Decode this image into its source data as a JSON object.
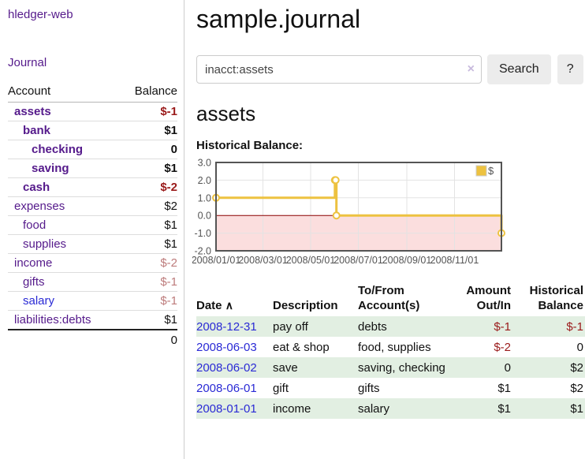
{
  "app": {
    "title": "hledger-web",
    "nav": {
      "journal": "Journal"
    }
  },
  "colors": {
    "purple": "#551a8b",
    "blue": "#2a2ad5",
    "negred": "#9a1a1a",
    "rose": "#bd7b7b",
    "rowgreen": "#e2efe2"
  },
  "sidebar": {
    "header": {
      "account": "Account",
      "balance": "Balance"
    },
    "accounts": [
      {
        "name": "assets",
        "balance": "$-1",
        "depth": 0,
        "bold": true,
        "muted": false,
        "link_color": "purple"
      },
      {
        "name": "bank",
        "balance": "$1",
        "depth": 1,
        "bold": true,
        "muted": false,
        "link_color": "purple"
      },
      {
        "name": "checking",
        "balance": "0",
        "depth": 2,
        "bold": true,
        "muted": false,
        "link_color": "purple"
      },
      {
        "name": "saving",
        "balance": "$1",
        "depth": 2,
        "bold": true,
        "muted": false,
        "link_color": "purple"
      },
      {
        "name": "cash",
        "balance": "$-2",
        "depth": 1,
        "bold": true,
        "muted": false,
        "link_color": "purple"
      },
      {
        "name": "expenses",
        "balance": "$2",
        "depth": 0,
        "bold": false,
        "muted": false,
        "link_color": "purple"
      },
      {
        "name": "food",
        "balance": "$1",
        "depth": 1,
        "bold": false,
        "muted": false,
        "link_color": "purple"
      },
      {
        "name": "supplies",
        "balance": "$1",
        "depth": 1,
        "bold": false,
        "muted": false,
        "link_color": "purple"
      },
      {
        "name": "income",
        "balance": "$-2",
        "depth": 0,
        "bold": false,
        "muted": true,
        "link_color": "purple"
      },
      {
        "name": "gifts",
        "balance": "$-1",
        "depth": 1,
        "bold": false,
        "muted": true,
        "link_color": "purple"
      },
      {
        "name": "salary",
        "balance": "$-1",
        "depth": 1,
        "bold": false,
        "muted": true,
        "link_color": "blue"
      },
      {
        "name": "liabilities:debts",
        "balance": "$1",
        "depth": 0,
        "bold": false,
        "muted": false,
        "link_color": "purple"
      }
    ],
    "total": "0"
  },
  "main": {
    "title": "sample.journal",
    "search": {
      "value": "inacct:assets",
      "clear_icon": "×",
      "button": "Search",
      "help": "?"
    },
    "account_heading": "assets",
    "chart_heading": "Historical Balance:"
  },
  "chart_data": {
    "type": "line",
    "step": true,
    "title": "Historical Balance",
    "legend": {
      "position": "top-right",
      "label": "$"
    },
    "series": [
      {
        "name": "$",
        "color": "#edc240",
        "points": [
          [
            "2008-01-01",
            1
          ],
          [
            "2008-06-01",
            2
          ],
          [
            "2008-06-02",
            2
          ],
          [
            "2008-06-03",
            0
          ],
          [
            "2008-12-31",
            -1
          ]
        ]
      }
    ],
    "ylim": [
      -2,
      3
    ],
    "yticks": [
      "3.0",
      "2.0",
      "1.0",
      "0.0",
      "-1.0",
      "-2.0"
    ],
    "xticks": [
      "2008/01/01",
      "2008/03/01",
      "2008/05/01",
      "2008/07/01",
      "2008/09/01",
      "2008/11/01"
    ],
    "grid": true,
    "negative_region_fill": "#fbdede",
    "zero_line_color": "#8b0000",
    "plot_border_color": "#545454",
    "grid_color": "#e3e3e3",
    "axis_text_color": "#545454"
  },
  "register": {
    "sort_icon": "∧",
    "headers": [
      "Date",
      "Description",
      "To/From Account(s)",
      "Amount Out/In",
      "Historical Balance"
    ],
    "rows": [
      {
        "date": "2008-12-31",
        "description": "pay off",
        "accounts": "debts",
        "amount": "$-1",
        "balance": "$-1"
      },
      {
        "date": "2008-06-03",
        "description": "eat & shop",
        "accounts": "food, supplies",
        "amount": "$-2",
        "balance": "0"
      },
      {
        "date": "2008-06-02",
        "description": "save",
        "accounts": "saving, checking",
        "amount": "0",
        "balance": "$2"
      },
      {
        "date": "2008-06-01",
        "description": "gift",
        "accounts": "gifts",
        "amount": "$1",
        "balance": "$2"
      },
      {
        "date": "2008-01-01",
        "description": "income",
        "accounts": "salary",
        "amount": "$1",
        "balance": "$1"
      }
    ]
  }
}
